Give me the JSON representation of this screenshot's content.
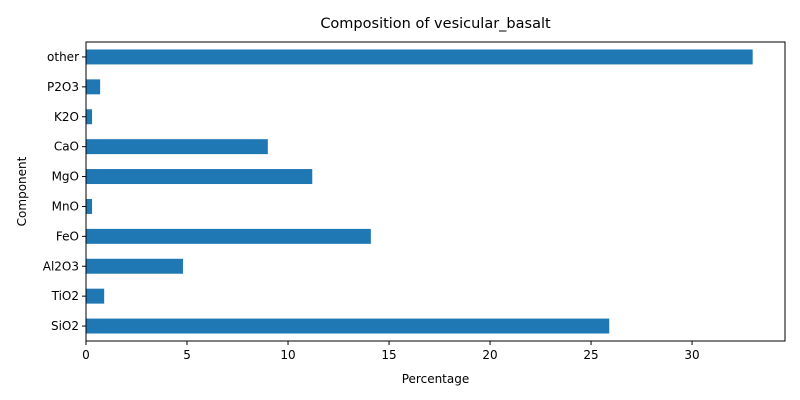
{
  "chart_data": {
    "type": "bar",
    "orientation": "horizontal",
    "title": "Composition of vesicular_basalt",
    "xlabel": "Percentage",
    "ylabel": "Component",
    "categories": [
      "SiO2",
      "TiO2",
      "Al2O3",
      "FeO",
      "MnO",
      "MgO",
      "CaO",
      "K2O",
      "P2O3",
      "other"
    ],
    "values": [
      25.9,
      0.9,
      4.8,
      14.1,
      0.3,
      11.2,
      9.0,
      0.3,
      0.7,
      33.0
    ],
    "xlim": [
      0,
      34.6
    ],
    "xticks": [
      0,
      5,
      10,
      15,
      20,
      25,
      30
    ],
    "bar_color": "#1f77b4",
    "grid": false,
    "legend": "none"
  }
}
